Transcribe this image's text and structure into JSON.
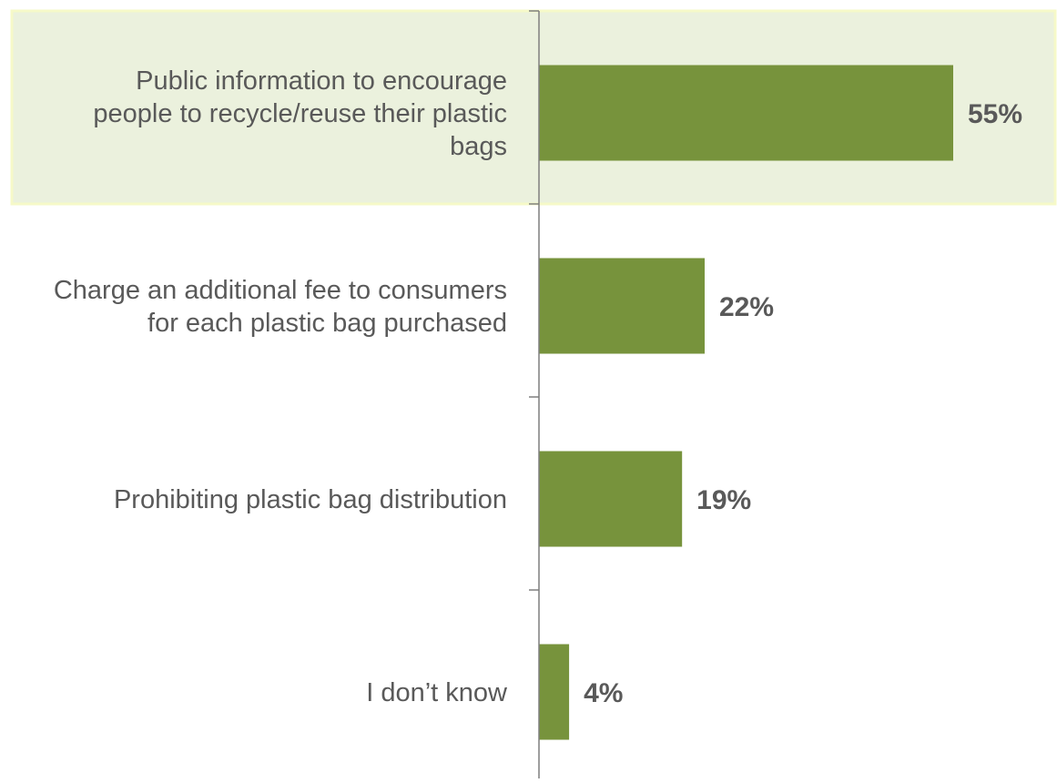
{
  "chart_data": {
    "type": "bar",
    "orientation": "horizontal",
    "categories": [
      "Public information to encourage people to recycle/reuse their plastic bags",
      "Charge an additional fee to consumers for each plastic bag purchased",
      "Prohibiting plastic bag distribution",
      "I don’t know"
    ],
    "category_lines": [
      [
        "Public information to encourage",
        "people to recycle/reuse their plastic",
        "bags"
      ],
      [
        "Charge an additional fee to consumers",
        "for each plastic bag purchased"
      ],
      [
        "Prohibiting plastic bag distribution"
      ],
      [
        "I don’t know"
      ]
    ],
    "values": [
      55,
      22,
      19,
      4
    ],
    "value_labels": [
      "55%",
      "22%",
      "19%",
      "4%"
    ],
    "unit": "%",
    "xlim": [
      0,
      60
    ],
    "highlighted_category": "Public information to encourage people to recycle/reuse their plastic bags",
    "grid": false,
    "legend": "none",
    "title": "",
    "xlabel": "",
    "ylabel": "",
    "colors": {
      "bar": "#77933c",
      "highlight_fill": "#ebf1dd",
      "highlight_border": "#f6f9c8",
      "axis": "#7f7f7f",
      "category_text": "#595959",
      "value_text": "#595959"
    }
  }
}
